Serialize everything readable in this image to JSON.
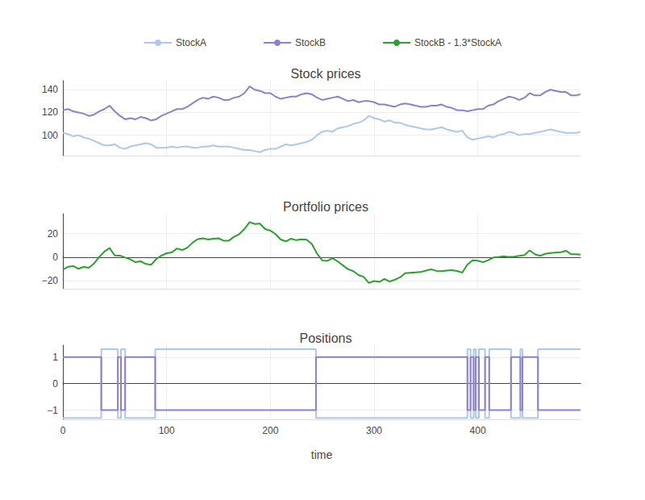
{
  "chart_data": [
    {
      "type": "line",
      "title": "Stock prices",
      "legend": "top",
      "grid": true,
      "tick_labels": "y",
      "x": [
        0,
        5,
        10,
        15,
        20,
        25,
        30,
        35,
        40,
        45,
        50,
        55,
        60,
        65,
        70,
        75,
        80,
        85,
        90,
        95,
        100,
        105,
        110,
        115,
        120,
        125,
        130,
        135,
        140,
        145,
        150,
        155,
        160,
        165,
        170,
        175,
        180,
        185,
        190,
        195,
        200,
        205,
        210,
        215,
        220,
        225,
        230,
        235,
        240,
        245,
        250,
        255,
        260,
        265,
        270,
        275,
        280,
        285,
        290,
        295,
        300,
        305,
        310,
        315,
        320,
        325,
        330,
        335,
        340,
        345,
        350,
        355,
        360,
        365,
        370,
        375,
        380,
        385,
        390,
        395,
        400,
        405,
        410,
        415,
        420,
        425,
        430,
        435,
        440,
        445,
        450,
        455,
        460,
        465,
        470,
        475,
        480,
        485,
        490,
        495,
        499
      ],
      "xlim": [
        0,
        499
      ],
      "xticks": [
        0,
        100,
        200,
        300,
        400
      ],
      "ylim": [
        82,
        148
      ],
      "yticks": [
        100,
        120,
        140
      ],
      "series": [
        {
          "name": "StockA",
          "color": "#aec7ec",
          "values": [
            102,
            101,
            99,
            100,
            98,
            97,
            95,
            93,
            91,
            91,
            92,
            89,
            88,
            90,
            91,
            92,
            93,
            92,
            89,
            89,
            89,
            90,
            89,
            90,
            90,
            89,
            89,
            90,
            90,
            91,
            90,
            90,
            90,
            89,
            88,
            87,
            87,
            86,
            85,
            87,
            88,
            88,
            90,
            92,
            91,
            92,
            93,
            94,
            96,
            100,
            103,
            104,
            103,
            106,
            107,
            108,
            110,
            111,
            113,
            117,
            115,
            114,
            112,
            113,
            111,
            111,
            109,
            108,
            107,
            106,
            105,
            105,
            106,
            107,
            105,
            104,
            103,
            104,
            98,
            96,
            97,
            98,
            99,
            98,
            100,
            101,
            103,
            102,
            100,
            101,
            101,
            102,
            103,
            104,
            105,
            104,
            103,
            102,
            102,
            102,
            103
          ]
        },
        {
          "name": "StockB",
          "color": "#8f80c8",
          "values": [
            122,
            123,
            121,
            120,
            119,
            117,
            118,
            121,
            123,
            126,
            121,
            117,
            114,
            115,
            114,
            116,
            115,
            113,
            114,
            117,
            119,
            121,
            123,
            123,
            125,
            128,
            131,
            133,
            132,
            134,
            133,
            131,
            131,
            133,
            134,
            137,
            143,
            140,
            139,
            137,
            137,
            134,
            132,
            133,
            134,
            134,
            136,
            137,
            136,
            133,
            131,
            132,
            133,
            134,
            132,
            130,
            131,
            129,
            130,
            130,
            129,
            127,
            127,
            126,
            125,
            127,
            128,
            127,
            126,
            125,
            125,
            126,
            126,
            127,
            125,
            124,
            122,
            122,
            121,
            122,
            123,
            123,
            126,
            127,
            130,
            132,
            134,
            133,
            131,
            133,
            137,
            135,
            135,
            138,
            140,
            139,
            138,
            138,
            135,
            135,
            136
          ]
        }
      ]
    },
    {
      "type": "line",
      "title": "Portfolio prices",
      "grid": true,
      "tick_labels": "y",
      "x": [
        0,
        5,
        10,
        15,
        20,
        25,
        30,
        35,
        40,
        45,
        50,
        55,
        60,
        65,
        70,
        75,
        80,
        85,
        90,
        95,
        100,
        105,
        110,
        115,
        120,
        125,
        130,
        135,
        140,
        145,
        150,
        155,
        160,
        165,
        170,
        175,
        180,
        185,
        190,
        195,
        200,
        205,
        210,
        215,
        220,
        225,
        230,
        235,
        240,
        245,
        250,
        255,
        260,
        265,
        270,
        275,
        280,
        285,
        290,
        295,
        300,
        305,
        310,
        315,
        320,
        325,
        330,
        335,
        340,
        345,
        350,
        355,
        360,
        365,
        370,
        375,
        380,
        385,
        390,
        395,
        400,
        405,
        410,
        415,
        420,
        425,
        430,
        435,
        440,
        445,
        450,
        455,
        460,
        465,
        470,
        475,
        480,
        485,
        490,
        495,
        499
      ],
      "xlim": [
        0,
        499
      ],
      "xticks": [
        0,
        100,
        200,
        300,
        400
      ],
      "ylim": [
        -27,
        37
      ],
      "yticks": [
        {
          "value": -20,
          "label": "−20"
        },
        0,
        20
      ],
      "series": [
        {
          "name": "StockB - 1.3*StockA",
          "color": "#2ca02c",
          "values": [
            -10.6,
            -8.3,
            -7.7,
            -10,
            -8.4,
            -9.1,
            -5.5,
            0.1,
            4.7,
            7.7,
            1.4,
            1.3,
            -0.4,
            -2,
            -4.3,
            -3.6,
            -5.9,
            -6.6,
            -1.7,
            1.3,
            3.3,
            4,
            7.3,
            6,
            8,
            12.3,
            15.3,
            16,
            15,
            15.7,
            16,
            14,
            14,
            17.3,
            19.6,
            23.9,
            29.9,
            28.2,
            28.5,
            23.9,
            22.6,
            19.6,
            15,
            13.4,
            15.7,
            14.4,
            15.1,
            14.8,
            11.2,
            3,
            -2.9,
            -3.2,
            -0.9,
            -3.8,
            -7.1,
            -10.4,
            -12,
            -15.3,
            -16.9,
            -22.1,
            -20.5,
            -21.2,
            -18.6,
            -20.9,
            -19.3,
            -17.3,
            -13.7,
            -13.4,
            -13.1,
            -12.8,
            -11.5,
            -10.5,
            -11.8,
            -12.1,
            -11.5,
            -11.2,
            -11.9,
            -13.2,
            -6.4,
            -2.8,
            -3.1,
            -4.4,
            -2.7,
            -0.4,
            0,
            0.7,
            0.1,
            0.4,
            1,
            1.7,
            5.7,
            2.4,
            1.1,
            2.8,
            3.5,
            3.8,
            4.1,
            5.4,
            2.4,
            2.4,
            2.1
          ]
        }
      ]
    },
    {
      "type": "step",
      "title": "Positions",
      "grid": true,
      "xlabel": "time",
      "x": [
        0,
        37,
        53,
        56,
        60,
        89,
        244,
        390,
        393,
        396,
        398,
        401,
        407,
        411,
        432,
        441,
        443,
        458,
        499
      ],
      "xlim": [
        0,
        499
      ],
      "xticks": [
        0,
        100,
        200,
        300,
        400
      ],
      "ylim": [
        -1.35,
        1.45
      ],
      "yticks": [
        {
          "value": -1,
          "label": "−1"
        },
        0,
        1
      ],
      "series": [
        {
          "name": "StockA",
          "color": "#aec7ec",
          "values": [
            -1.3,
            1.3,
            -1.3,
            1.3,
            -1.3,
            1.3,
            -1.3,
            1.3,
            -1.3,
            1.3,
            -1.3,
            1.3,
            -1.3,
            1.3,
            -1.3,
            1.3,
            -1.3,
            1.3,
            1.3
          ]
        },
        {
          "name": "StockB",
          "color": "#8f80c8",
          "values": [
            1,
            -1,
            1,
            -1,
            1,
            -1,
            1,
            -1,
            1,
            -1,
            1,
            -1,
            1,
            -1,
            1,
            -1,
            1,
            -1,
            -1
          ]
        }
      ]
    }
  ]
}
